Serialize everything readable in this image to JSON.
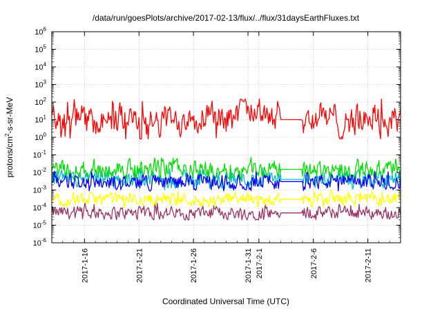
{
  "chart_data": {
    "type": "line",
    "title": "/data/run/goesPlots/archive/2017-02-13/flux/../flux/31daysEarthFluxes.txt",
    "xlabel": "Coordinated Universal Time (UTC)",
    "ylabel_html": "protons/cm²-s-sr-MeV",
    "ylabel_parts": {
      "pre": "protons/cm",
      "sup": "2",
      "post": "-s-sr-MeV"
    },
    "y_scale": "log",
    "ylim": [
      1e-06,
      1000000.0
    ],
    "y_ticks": [
      {
        "base": "10",
        "exp": "-6",
        "value": 1e-06
      },
      {
        "base": "10",
        "exp": "-5",
        "value": 1e-05
      },
      {
        "base": "10",
        "exp": "-4",
        "value": 0.0001
      },
      {
        "base": "10",
        "exp": "-3",
        "value": 0.001
      },
      {
        "base": "10",
        "exp": "-2",
        "value": 0.01
      },
      {
        "base": "10",
        "exp": "-1",
        "value": 0.1
      },
      {
        "base": "10",
        "exp": "0",
        "value": 1
      },
      {
        "base": "10",
        "exp": "1",
        "value": 10
      },
      {
        "base": "10",
        "exp": "2",
        "value": 100
      },
      {
        "base": "10",
        "exp": "3",
        "value": 1000
      },
      {
        "base": "10",
        "exp": "4",
        "value": 10000
      },
      {
        "base": "10",
        "exp": "5",
        "value": 100000
      },
      {
        "base": "10",
        "exp": "6",
        "value": 1000000
      }
    ],
    "xlim": [
      "2017-01-13",
      "2017-02-14"
    ],
    "x_ticks": [
      {
        "date": "2017-01-16",
        "label": "2017-1-16"
      },
      {
        "date": "2017-01-21",
        "label": "2017-1-21"
      },
      {
        "date": "2017-01-26",
        "label": "2017-1-26"
      },
      {
        "date": "2017-01-31",
        "label": "2017-1-31"
      },
      {
        "date": "2017-02-01",
        "label": "2017-2-1"
      },
      {
        "date": "2017-02-06",
        "label": "2017-2-6"
      },
      {
        "date": "2017-02-11",
        "label": "2017-2-11"
      }
    ],
    "grid": true,
    "series": [
      {
        "color": "#ff0000",
        "typical": 10,
        "min": 0.8,
        "max": 150,
        "daily_levels": [
          8,
          6,
          12,
          7,
          9,
          5,
          14,
          8,
          2,
          6,
          10,
          7,
          18,
          15,
          30,
          22,
          12,
          40,
          35,
          30,
          20,
          60,
          25,
          10,
          15,
          12,
          6,
          10,
          8,
          20,
          4,
          10
        ]
      },
      {
        "color": "#00dd00",
        "typical": 0.015,
        "min": 0.004,
        "max": 0.09
      },
      {
        "color": "#00bbcc",
        "typical": 0.004,
        "min": 0.001,
        "max": 0.02
      },
      {
        "color": "#0000ff",
        "typical": 0.003,
        "min": 0.0008,
        "max": 0.012
      },
      {
        "color": "#ffff00",
        "typical": 0.0003,
        "min": 0.0001,
        "max": 0.001
      },
      {
        "color": "#993366",
        "typical": 5e-05,
        "min": 2e-05,
        "max": 0.0002
      }
    ],
    "data_gap": [
      "2017-02-03",
      "2017-02-05"
    ]
  }
}
